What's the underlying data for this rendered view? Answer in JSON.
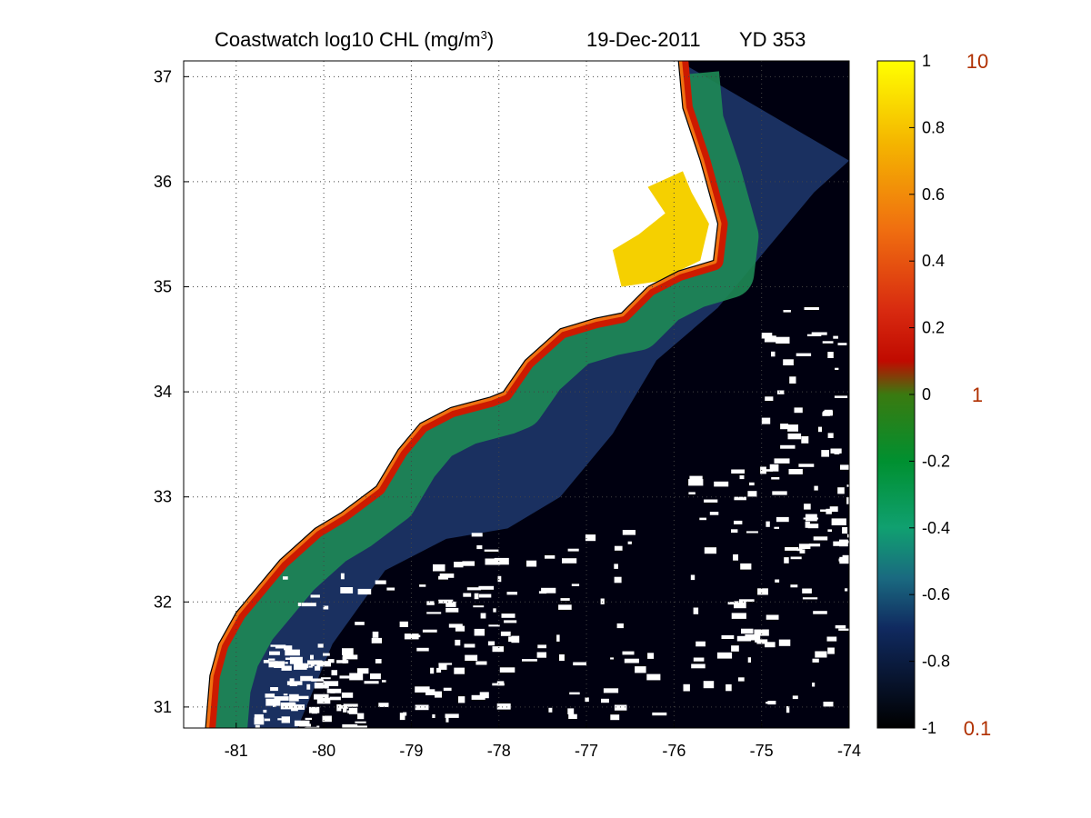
{
  "title": {
    "main": "Coastwatch  log10  CHL (mg/m",
    "superscript": "3",
    "close": ")",
    "date": "19-Dec-2011",
    "yearday": "YD 353"
  },
  "map": {
    "lon_range": [
      -81.6,
      -74.0
    ],
    "lat_range": [
      30.8,
      37.15
    ],
    "x_ticks": [
      -81,
      -80,
      -79,
      -78,
      -77,
      -76,
      -75,
      -74
    ],
    "y_ticks": [
      31,
      32,
      33,
      34,
      35,
      36,
      37
    ],
    "x_tick_labels": [
      "-81",
      "-80",
      "-79",
      "-78",
      "-77",
      "-76",
      "-75",
      "-74"
    ],
    "y_tick_labels": [
      "31",
      "32",
      "33",
      "34",
      "35",
      "36",
      "37"
    ],
    "grid": "dotted",
    "coastline": [
      [
        -81.35,
        30.8
      ],
      [
        -81.3,
        31.3
      ],
      [
        -81.2,
        31.6
      ],
      [
        -81.0,
        31.9
      ],
      [
        -80.8,
        32.1
      ],
      [
        -80.5,
        32.4
      ],
      [
        -80.1,
        32.7
      ],
      [
        -79.8,
        32.85
      ],
      [
        -79.4,
        33.1
      ],
      [
        -79.15,
        33.45
      ],
      [
        -78.9,
        33.7
      ],
      [
        -78.55,
        33.85
      ],
      [
        -78.1,
        33.95
      ],
      [
        -77.95,
        34.0
      ],
      [
        -77.7,
        34.3
      ],
      [
        -77.3,
        34.6
      ],
      [
        -76.9,
        34.7
      ],
      [
        -76.6,
        34.75
      ],
      [
        -76.3,
        35.0
      ],
      [
        -75.95,
        35.15
      ],
      [
        -75.55,
        35.25
      ],
      [
        -75.5,
        35.6
      ],
      [
        -75.7,
        36.2
      ],
      [
        -75.9,
        36.7
      ],
      [
        -75.95,
        37.15
      ]
    ],
    "shelf_front": [
      [
        -80.3,
        30.8
      ],
      [
        -79.9,
        31.6
      ],
      [
        -79.3,
        32.3
      ],
      [
        -78.6,
        32.6
      ],
      [
        -77.9,
        32.7
      ],
      [
        -77.3,
        33.0
      ],
      [
        -76.7,
        33.6
      ],
      [
        -76.2,
        34.3
      ],
      [
        -75.5,
        34.8
      ],
      [
        -74.9,
        35.4
      ],
      [
        -74.4,
        35.9
      ],
      [
        -74.0,
        36.2
      ]
    ],
    "inland_water_label": "",
    "colors": {
      "ocean_deep": "#000010",
      "shelf_blue": "#1a3060",
      "shelf_green": "#1e8a55",
      "nearshore_red": "#cc1a00",
      "sound_yellow": "#f5d000",
      "land": "#ffffff",
      "cloud": "#ffffff"
    }
  },
  "colorbar": {
    "ticks": [
      1,
      0.8,
      0.6,
      0.4,
      0.2,
      0,
      -0.2,
      -0.4,
      -0.6,
      -0.8,
      -1
    ],
    "tick_labels": [
      "1",
      "0.8",
      "0.6",
      "0.4",
      "0.2",
      "0",
      "-0.2",
      "-0.4",
      "-0.6",
      "-0.8",
      "-1"
    ],
    "range": [
      -1,
      1
    ],
    "stops": [
      {
        "value": 1.0,
        "color": "#ffff00"
      },
      {
        "value": 0.75,
        "color": "#f4b400"
      },
      {
        "value": 0.5,
        "color": "#f07010"
      },
      {
        "value": 0.25,
        "color": "#d82a10"
      },
      {
        "value": 0.1,
        "color": "#c00a00"
      },
      {
        "value": 0.0,
        "color": "#3a7a10"
      },
      {
        "value": -0.2,
        "color": "#009030"
      },
      {
        "value": -0.4,
        "color": "#10a070"
      },
      {
        "value": -0.55,
        "color": "#1a6a80"
      },
      {
        "value": -0.7,
        "color": "#102a60"
      },
      {
        "value": -1.0,
        "color": "#000000"
      }
    ],
    "concentration_labels": [
      {
        "value": 1,
        "label": "10"
      },
      {
        "value": 0,
        "label": "1"
      },
      {
        "value": -1,
        "label": "0.1"
      }
    ]
  }
}
